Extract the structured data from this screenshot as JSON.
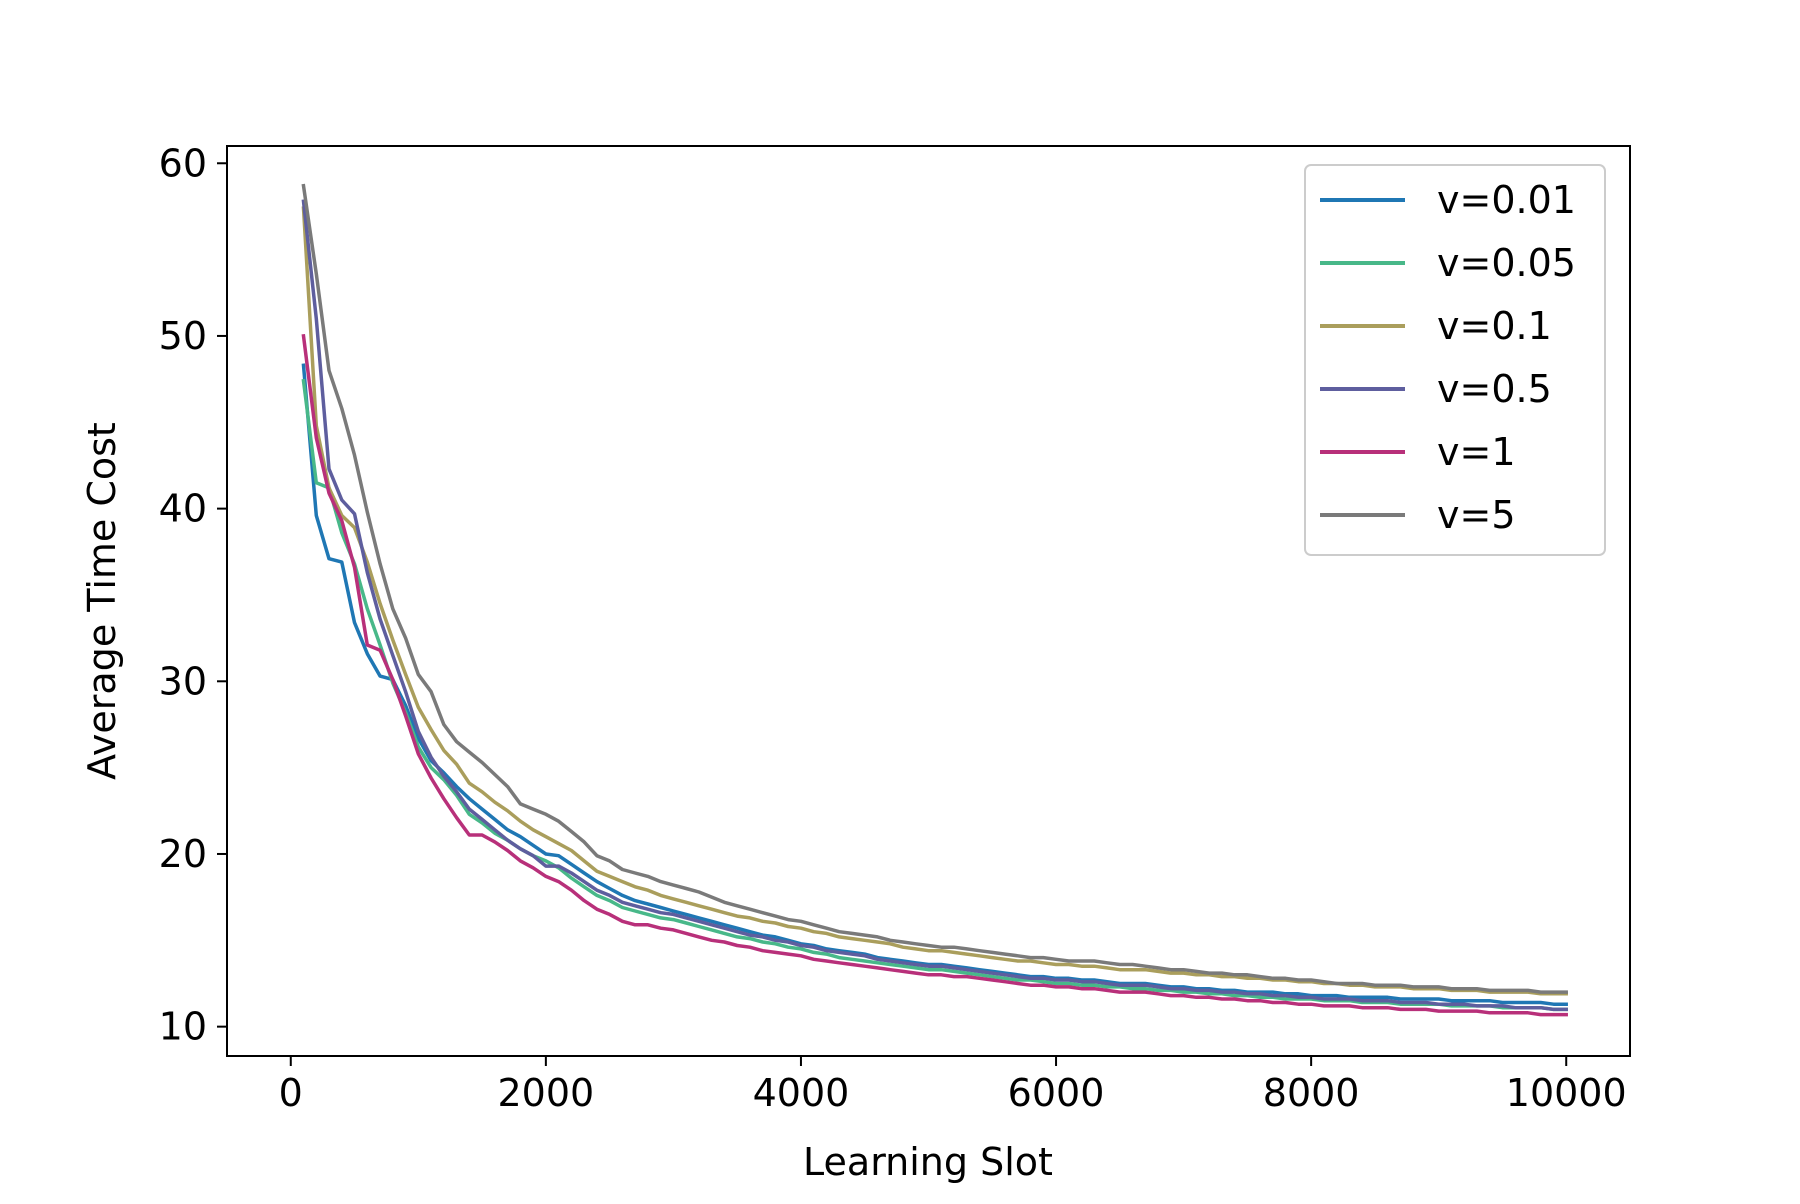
{
  "chart_data": {
    "type": "line",
    "title": "",
    "xlabel": "Learning Slot",
    "ylabel": "Average Time Cost",
    "xlim": [
      -500,
      10500
    ],
    "ylim": [
      8.3,
      61.0
    ],
    "x_ticks": [
      0,
      2000,
      4000,
      6000,
      8000,
      10000
    ],
    "x_tick_labels": [
      "0",
      "2000",
      "4000",
      "6000",
      "8000",
      "10000"
    ],
    "y_ticks": [
      10,
      20,
      30,
      40,
      50,
      60
    ],
    "y_tick_labels": [
      "10",
      "20",
      "30",
      "40",
      "50",
      "60"
    ],
    "grid": false,
    "legend_position": "top-right",
    "x": [
      100,
      200,
      300,
      400,
      500,
      600,
      700,
      800,
      900,
      1000,
      1100,
      1200,
      1300,
      1400,
      1500,
      1600,
      1700,
      1800,
      1900,
      2000,
      2100,
      2200,
      2300,
      2400,
      2500,
      2600,
      2700,
      2800,
      2900,
      3000,
      3100,
      3200,
      3300,
      3400,
      3500,
      3600,
      3700,
      3800,
      3900,
      4000,
      4100,
      4200,
      4300,
      4400,
      4500,
      4600,
      4700,
      4800,
      4900,
      5000,
      5100,
      5200,
      5300,
      5400,
      5500,
      5600,
      5700,
      5800,
      5900,
      6000,
      6100,
      6200,
      6300,
      6400,
      6500,
      6600,
      6700,
      6800,
      6900,
      7000,
      7100,
      7200,
      7300,
      7400,
      7500,
      7600,
      7700,
      7800,
      7900,
      8000,
      8100,
      8200,
      8300,
      8400,
      8500,
      8600,
      8700,
      8800,
      8900,
      9000,
      9100,
      9200,
      9300,
      9400,
      9500,
      9600,
      9700,
      9800,
      9900,
      10000
    ],
    "series": [
      {
        "name": "v=0.01",
        "color": "#1f77b4",
        "values": [
          48.3,
          39.6,
          37.1,
          36.9,
          33.4,
          31.6,
          30.3,
          30.1,
          28.6,
          26.7,
          25.4,
          24.7,
          23.9,
          23.2,
          22.6,
          22.0,
          21.4,
          21.0,
          20.5,
          20.0,
          19.9,
          19.4,
          18.9,
          18.4,
          18.0,
          17.6,
          17.3,
          17.1,
          16.9,
          16.7,
          16.5,
          16.3,
          16.1,
          15.9,
          15.7,
          15.5,
          15.3,
          15.2,
          15.0,
          14.8,
          14.7,
          14.5,
          14.4,
          14.3,
          14.2,
          14.0,
          13.9,
          13.8,
          13.7,
          13.6,
          13.6,
          13.5,
          13.4,
          13.3,
          13.2,
          13.1,
          13.0,
          12.9,
          12.9,
          12.8,
          12.8,
          12.7,
          12.7,
          12.6,
          12.5,
          12.5,
          12.5,
          12.4,
          12.3,
          12.3,
          12.2,
          12.2,
          12.1,
          12.1,
          12.0,
          12.0,
          12.0,
          11.9,
          11.9,
          11.8,
          11.8,
          11.8,
          11.7,
          11.7,
          11.7,
          11.7,
          11.6,
          11.6,
          11.6,
          11.6,
          11.5,
          11.5,
          11.5,
          11.5,
          11.4,
          11.4,
          11.4,
          11.4,
          11.3,
          11.3
        ]
      },
      {
        "name": "v=0.05",
        "color": "#48b889",
        "values": [
          47.4,
          41.5,
          41.2,
          38.6,
          36.8,
          34.2,
          32.1,
          29.9,
          28.2,
          26.2,
          25.0,
          24.3,
          23.4,
          22.3,
          21.8,
          21.2,
          20.8,
          20.3,
          19.9,
          19.6,
          19.2,
          18.6,
          18.1,
          17.6,
          17.3,
          16.9,
          16.7,
          16.5,
          16.3,
          16.2,
          16.0,
          15.8,
          15.6,
          15.4,
          15.2,
          15.1,
          14.9,
          14.8,
          14.6,
          14.5,
          14.3,
          14.2,
          14.0,
          13.9,
          13.8,
          13.7,
          13.6,
          13.5,
          13.4,
          13.3,
          13.3,
          13.2,
          13.1,
          13.0,
          12.9,
          12.8,
          12.7,
          12.7,
          12.6,
          12.5,
          12.5,
          12.4,
          12.4,
          12.3,
          12.3,
          12.2,
          12.2,
          12.1,
          12.1,
          12.0,
          12.0,
          11.9,
          11.9,
          11.8,
          11.8,
          11.7,
          11.7,
          11.6,
          11.6,
          11.6,
          11.5,
          11.5,
          11.5,
          11.4,
          11.4,
          11.4,
          11.3,
          11.3,
          11.3,
          11.3,
          11.2,
          11.2,
          11.2,
          11.2,
          11.1,
          11.1,
          11.1,
          11.1,
          11.0,
          11.0
        ]
      },
      {
        "name": "v=0.1",
        "color": "#aa9e5c",
        "values": [
          57.4,
          44.8,
          41.2,
          39.6,
          38.9,
          36.9,
          34.5,
          32.4,
          30.4,
          28.5,
          27.2,
          26.0,
          25.2,
          24.1,
          23.6,
          23.0,
          22.5,
          21.9,
          21.4,
          21.0,
          20.6,
          20.2,
          19.6,
          19.0,
          18.7,
          18.4,
          18.1,
          17.9,
          17.6,
          17.4,
          17.2,
          17.0,
          16.8,
          16.6,
          16.4,
          16.3,
          16.1,
          16.0,
          15.8,
          15.7,
          15.5,
          15.4,
          15.2,
          15.1,
          15.0,
          14.9,
          14.8,
          14.6,
          14.5,
          14.4,
          14.4,
          14.3,
          14.2,
          14.1,
          14.0,
          13.9,
          13.8,
          13.8,
          13.7,
          13.6,
          13.6,
          13.5,
          13.5,
          13.4,
          13.3,
          13.3,
          13.3,
          13.2,
          13.1,
          13.1,
          13.0,
          13.0,
          12.9,
          12.9,
          12.8,
          12.8,
          12.7,
          12.7,
          12.6,
          12.6,
          12.5,
          12.5,
          12.4,
          12.4,
          12.3,
          12.3,
          12.3,
          12.2,
          12.2,
          12.2,
          12.1,
          12.1,
          12.1,
          12.0,
          12.0,
          12.0,
          12.0,
          11.9,
          11.9,
          11.9
        ]
      },
      {
        "name": "v=0.5",
        "color": "#5e5e9e",
        "values": [
          57.8,
          51.0,
          42.3,
          40.5,
          39.7,
          36.3,
          33.6,
          31.5,
          29.4,
          27.1,
          25.6,
          24.5,
          23.6,
          22.6,
          22.0,
          21.4,
          20.8,
          20.3,
          19.9,
          19.3,
          19.3,
          18.9,
          18.4,
          17.9,
          17.6,
          17.2,
          17.0,
          16.8,
          16.6,
          16.5,
          16.3,
          16.1,
          15.9,
          15.7,
          15.5,
          15.3,
          15.2,
          15.0,
          14.9,
          14.7,
          14.6,
          14.4,
          14.3,
          14.2,
          14.1,
          13.9,
          13.8,
          13.7,
          13.6,
          13.5,
          13.5,
          13.4,
          13.3,
          13.2,
          13.1,
          13.0,
          12.9,
          12.8,
          12.8,
          12.7,
          12.7,
          12.6,
          12.6,
          12.5,
          12.4,
          12.4,
          12.4,
          12.3,
          12.2,
          12.2,
          12.1,
          12.1,
          12.0,
          12.0,
          11.9,
          11.9,
          11.8,
          11.8,
          11.7,
          11.7,
          11.6,
          11.6,
          11.6,
          11.5,
          11.5,
          11.5,
          11.4,
          11.4,
          11.4,
          11.3,
          11.3,
          11.3,
          11.2,
          11.2,
          11.2,
          11.1,
          11.1,
          11.1,
          11.0,
          11.0
        ]
      },
      {
        "name": "v=1",
        "color": "#b8307a",
        "values": [
          50.0,
          44.1,
          40.9,
          39.3,
          36.6,
          32.1,
          31.8,
          30.1,
          28.0,
          25.8,
          24.4,
          23.2,
          22.1,
          21.1,
          21.1,
          20.7,
          20.2,
          19.6,
          19.2,
          18.7,
          18.4,
          17.9,
          17.3,
          16.8,
          16.5,
          16.1,
          15.9,
          15.9,
          15.7,
          15.6,
          15.4,
          15.2,
          15.0,
          14.9,
          14.7,
          14.6,
          14.4,
          14.3,
          14.2,
          14.1,
          13.9,
          13.8,
          13.7,
          13.6,
          13.5,
          13.4,
          13.3,
          13.2,
          13.1,
          13.0,
          13.0,
          12.9,
          12.9,
          12.8,
          12.7,
          12.6,
          12.5,
          12.4,
          12.4,
          12.3,
          12.3,
          12.2,
          12.2,
          12.1,
          12.0,
          12.0,
          12.0,
          11.9,
          11.8,
          11.8,
          11.7,
          11.7,
          11.6,
          11.6,
          11.5,
          11.5,
          11.4,
          11.4,
          11.3,
          11.3,
          11.2,
          11.2,
          11.2,
          11.1,
          11.1,
          11.1,
          11.0,
          11.0,
          11.0,
          10.9,
          10.9,
          10.9,
          10.9,
          10.8,
          10.8,
          10.8,
          10.8,
          10.7,
          10.7,
          10.7
        ]
      },
      {
        "name": "v=5",
        "color": "#7a7a7a",
        "values": [
          58.7,
          53.6,
          48.0,
          45.8,
          43.1,
          39.8,
          36.8,
          34.2,
          32.5,
          30.4,
          29.4,
          27.5,
          26.5,
          25.9,
          25.3,
          24.6,
          23.9,
          22.9,
          22.6,
          22.3,
          21.9,
          21.3,
          20.7,
          19.9,
          19.6,
          19.1,
          18.9,
          18.7,
          18.4,
          18.2,
          18.0,
          17.8,
          17.5,
          17.2,
          17.0,
          16.8,
          16.6,
          16.4,
          16.2,
          16.1,
          15.9,
          15.7,
          15.5,
          15.4,
          15.3,
          15.2,
          15.0,
          14.9,
          14.8,
          14.7,
          14.6,
          14.6,
          14.5,
          14.4,
          14.3,
          14.2,
          14.1,
          14.0,
          14.0,
          13.9,
          13.8,
          13.8,
          13.8,
          13.7,
          13.6,
          13.6,
          13.5,
          13.4,
          13.3,
          13.3,
          13.2,
          13.1,
          13.1,
          13.0,
          13.0,
          12.9,
          12.8,
          12.8,
          12.7,
          12.7,
          12.6,
          12.5,
          12.5,
          12.5,
          12.4,
          12.4,
          12.4,
          12.3,
          12.3,
          12.3,
          12.2,
          12.2,
          12.2,
          12.1,
          12.1,
          12.1,
          12.1,
          12.0,
          12.0,
          12.0
        ]
      }
    ]
  }
}
